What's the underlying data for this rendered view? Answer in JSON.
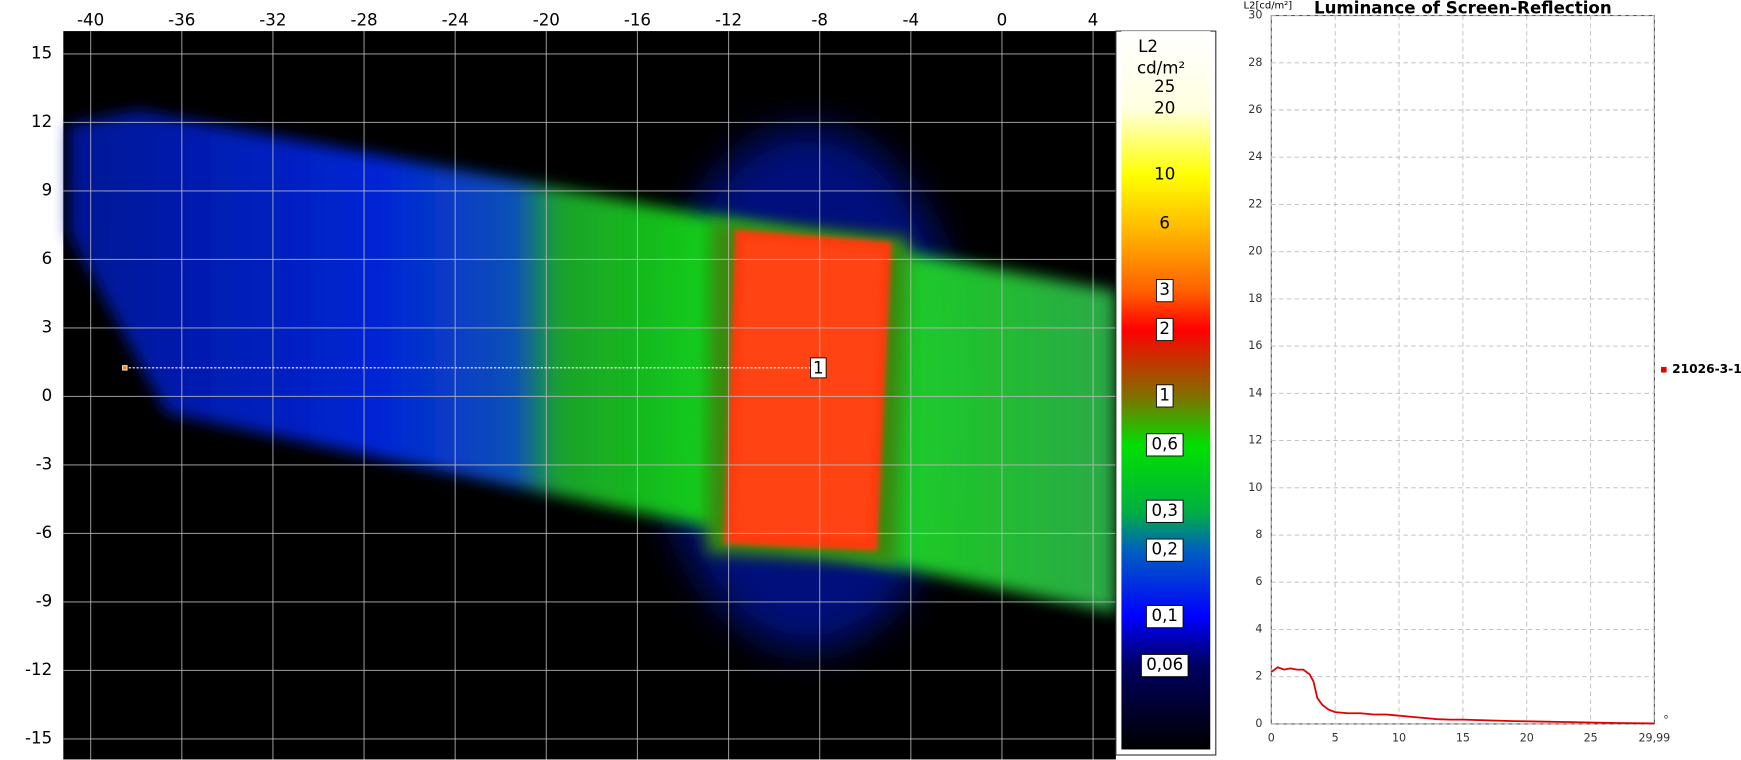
{
  "chart_data": [
    {
      "type": "heatmap",
      "xlim": [
        -41.2,
        5
      ],
      "ylim": [
        -15.9,
        16
      ],
      "xticks": [
        -40,
        -36,
        -32,
        -28,
        -24,
        -20,
        -16,
        -12,
        -8,
        -4,
        0,
        4
      ],
      "yticks": [
        15,
        12,
        9,
        6,
        3,
        0,
        -3,
        -6,
        -9,
        -12,
        -15
      ],
      "grid": true,
      "colorbar": {
        "title": "L2",
        "unit": "cd/m²",
        "lim": [
          0.025,
          45
        ],
        "log": true,
        "ticks": [
          25,
          20,
          10,
          6,
          3,
          2,
          1,
          {
            "value": 0.6,
            "label": "0,6"
          },
          {
            "value": 0.3,
            "label": "0,3"
          },
          {
            "value": 0.2,
            "label": "0,2"
          },
          {
            "value": 0.1,
            "label": "0,1"
          },
          {
            "value": 0.06,
            "label": "0,06"
          }
        ]
      },
      "profile_line": {
        "label": "1",
        "x": [
          -38.5,
          -8.4
        ],
        "y": [
          1.25,
          1.25
        ]
      }
    },
    {
      "type": "line",
      "title": "Luminance of Screen-Reflection",
      "y_label": "L2[cd/m²]",
      "x_label": "°",
      "x": [
        0,
        0.5,
        1,
        1.5,
        2,
        2.5,
        3,
        3.3,
        3.6,
        4,
        4.5,
        5,
        6,
        7,
        8,
        9,
        10,
        11,
        12,
        13,
        14,
        15,
        17,
        19,
        21,
        23,
        25,
        27,
        29.99
      ],
      "series": [
        {
          "name": "21026-3-1",
          "color": "#e00000",
          "values": [
            2.2,
            2.4,
            2.3,
            2.35,
            2.3,
            2.3,
            2.1,
            1.8,
            1.1,
            0.8,
            0.6,
            0.5,
            0.45,
            0.45,
            0.4,
            0.4,
            0.35,
            0.3,
            0.25,
            0.2,
            0.18,
            0.18,
            0.15,
            0.12,
            0.1,
            0.08,
            0.06,
            0.04,
            0.02
          ]
        }
      ],
      "xlim": [
        0,
        29.99
      ],
      "ylim": [
        0,
        30
      ],
      "xticks": [
        0,
        5,
        10,
        15,
        20,
        25,
        {
          "value": 29.99,
          "label": "29,99"
        }
      ],
      "yticks": [
        0,
        2,
        4,
        6,
        8,
        10,
        12,
        14,
        16,
        18,
        20,
        22,
        24,
        26,
        28,
        30
      ],
      "grid": true
    }
  ]
}
